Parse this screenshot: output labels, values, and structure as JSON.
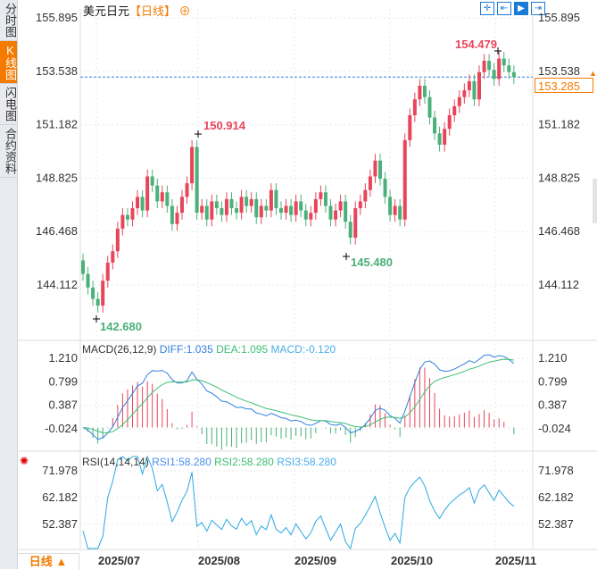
{
  "sidebar": {
    "tabs": [
      {
        "label": "分时图",
        "active": false
      },
      {
        "label": "K线图",
        "active": true
      },
      {
        "label": "闪电图",
        "active": false
      },
      {
        "label": "合约资料",
        "active": false
      }
    ]
  },
  "header": {
    "title": "美元日元",
    "period": "【日线】",
    "zoom_icon": "plus-circle-icon"
  },
  "toolbar": {
    "icons": [
      "crosshair-icon",
      "zoom-range-icon",
      "play-icon",
      "goto-end-icon"
    ]
  },
  "colors": {
    "up": "#e8455a",
    "down": "#4bb07a",
    "accent": "#f57a00",
    "diff": "#2f7fe0",
    "dea": "#3cbf73",
    "macd": "#4aaee8",
    "rsi": "#2aa8e0"
  },
  "price_axis": {
    "ticks": [
      "155.895",
      "153.538",
      "151.182",
      "148.825",
      "146.468",
      "144.112"
    ],
    "range": [
      144.112,
      155.895
    ],
    "current": "153.285"
  },
  "annotations": {
    "high_main": "150.914",
    "high_recent": "154.479",
    "low_recent": "145.480",
    "low_main": "142.680"
  },
  "candles": {
    "closes": [
      144.6,
      144.0,
      143.5,
      143.2,
      144.3,
      145.1,
      145.6,
      146.6,
      147.2,
      147.0,
      147.5,
      148.0,
      147.4,
      148.9,
      148.5,
      147.8,
      148.2,
      147.6,
      146.8,
      147.3,
      148.0,
      148.6,
      150.2,
      147.3,
      147.6,
      147.0,
      147.8,
      147.5,
      147.2,
      147.9,
      147.5,
      147.3,
      148.0,
      147.6,
      147.9,
      147.1,
      147.6,
      147.4,
      148.3,
      147.5,
      147.3,
      147.6,
      147.2,
      147.8,
      147.4,
      147.0,
      147.3,
      147.9,
      148.2,
      147.6,
      147.0,
      147.4,
      147.8,
      146.9,
      146.2,
      147.5,
      147.8,
      148.3,
      148.9,
      149.6,
      148.8,
      148.0,
      147.2,
      147.6,
      147.0,
      150.5,
      151.6,
      152.3,
      152.9,
      152.4,
      151.5,
      150.8,
      150.3,
      151.0,
      151.6,
      152.0,
      152.4,
      152.7,
      153.1,
      152.3,
      153.5,
      154.0,
      153.6,
      153.2,
      154.1,
      153.8,
      153.5,
      153.285
    ],
    "first_open": 145.2
  },
  "macd": {
    "label": "MACD(26,12,9)",
    "diff": "DIFF:1.035",
    "dea": "DEA:1.095",
    "macd": "MACD:-0.120",
    "ticks": [
      "1.210",
      "0.799",
      "0.387",
      "-0.024"
    ],
    "range": [
      -0.024,
      1.21
    ]
  },
  "rsi": {
    "label": "RSI(14,14,14)",
    "rsi1": "RSI1:58.280",
    "rsi2": "RSI2:58.280",
    "rsi3": "RSI3:58.280",
    "ticks": [
      "71.978",
      "62.182",
      "52.387"
    ],
    "range": [
      52.387,
      71.978
    ],
    "icon": "settings-sun-icon"
  },
  "time_axis": {
    "labels": [
      "2025/07",
      "2025/08",
      "2025/09",
      "2025/10",
      "2025/11"
    ],
    "period_button": "日线 ▲"
  }
}
